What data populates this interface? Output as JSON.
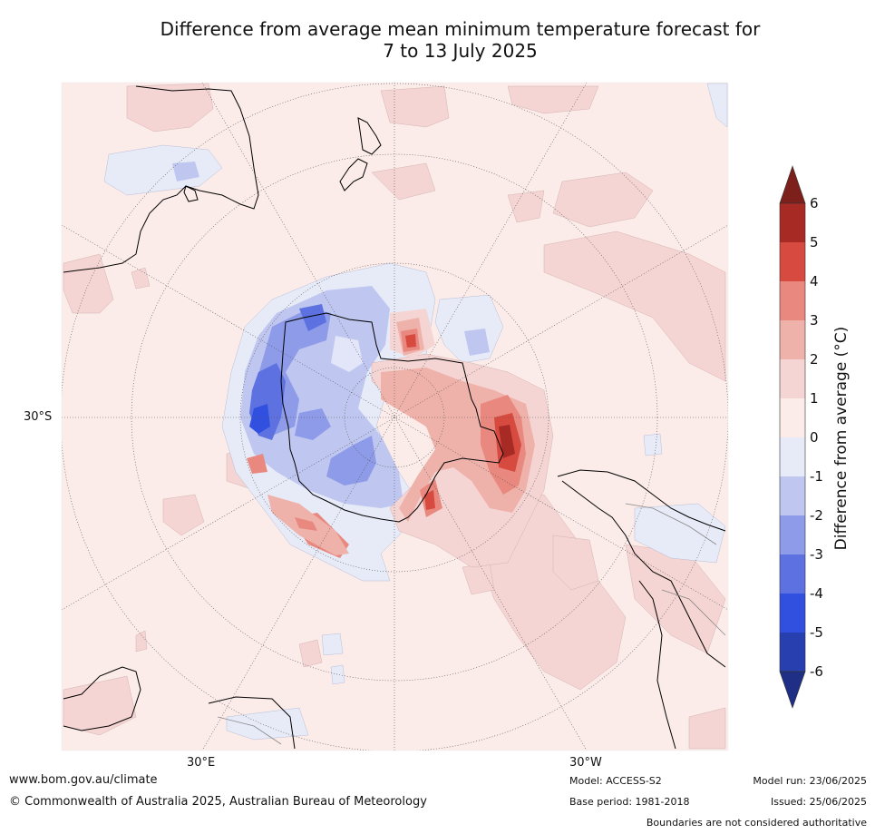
{
  "title": {
    "line1": "Difference from average mean minimum temperature forecast for",
    "line2": "7 to 13 July 2025"
  },
  "map": {
    "projection": "south-polar stereographic",
    "lat_label": "30°S",
    "lon_labels": [
      "30°E",
      "30°W"
    ]
  },
  "legend": {
    "label": "Difference from average (°C)",
    "ticks": [
      "6",
      "5",
      "4",
      "3",
      "2",
      "1",
      "0",
      "-1",
      "-2",
      "-3",
      "-4",
      "-5",
      "-6"
    ],
    "colors": {
      "above_6": "#7d1f1a",
      "5_6": "#a82a25",
      "4_5": "#d64a3f",
      "3_4": "#e8887f",
      "2_3": "#efb2ab",
      "1_2": "#f5d5d3",
      "0_1": "#fbebe9",
      "m1_0": "#e7ebf8",
      "m2_m1": "#bfc7f0",
      "m3_m2": "#8d9be8",
      "m4_m3": "#5d72e0",
      "m5_m4": "#3250e0",
      "m6_m5": "#283fb0",
      "below_m6": "#1f2f85"
    }
  },
  "footer": {
    "url": "www.bom.gov.au/climate",
    "copyright": "© Commonwealth of Australia 2025, Australian Bureau of Meteorology",
    "model": "Model: ACCESS-S2",
    "base_period": "Base period: 1981-2018",
    "model_run": "Model run: 23/06/2025",
    "issued": "Issued: 25/06/2025",
    "disclaimer": "Boundaries are not considered authoritative"
  }
}
